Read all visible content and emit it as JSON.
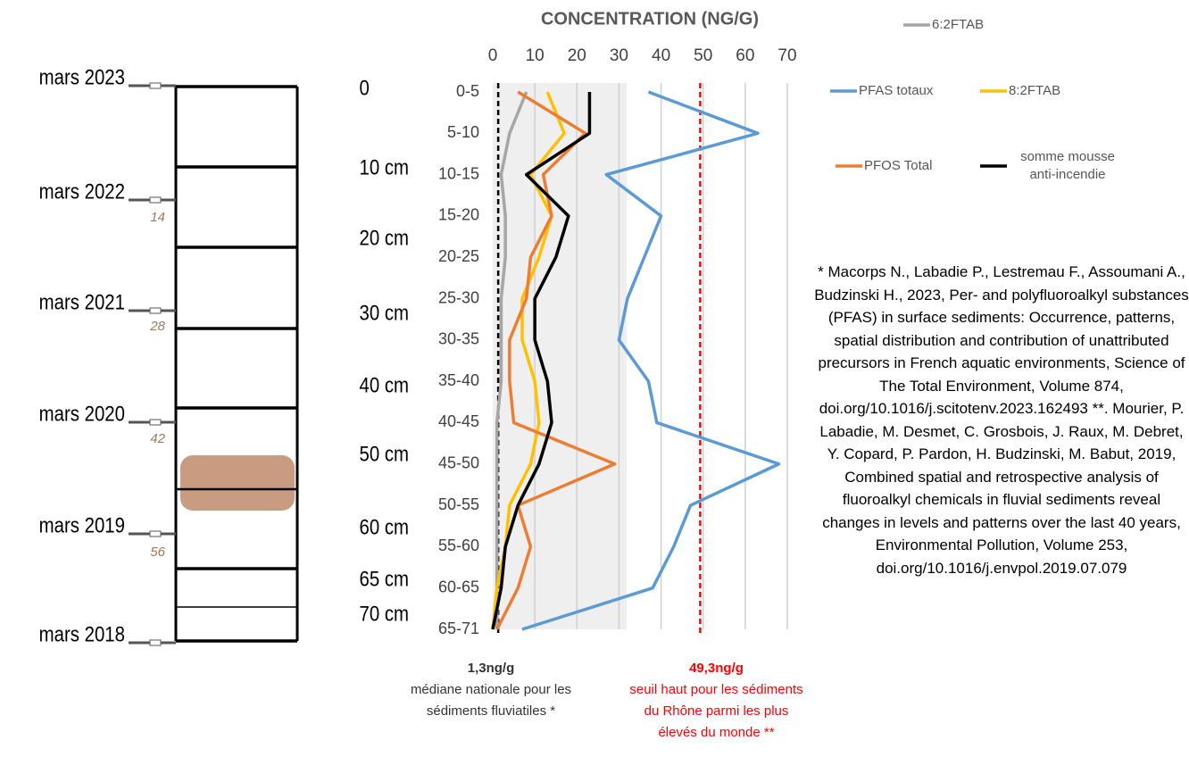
{
  "chart_data": {
    "type": "line",
    "title": "CONCENTRATION (NG/G)",
    "categories": [
      "0-5",
      "5-10",
      "10-15",
      "15-20",
      "20-25",
      "25-30",
      "30-35",
      "35-40",
      "40-45",
      "45-50",
      "50-55",
      "55-60",
      "60-65",
      "65-71"
    ],
    "xlim": [
      0,
      70
    ],
    "xticks": [
      0,
      10,
      20,
      30,
      40,
      50,
      60,
      70
    ],
    "grid": true,
    "series": [
      {
        "name": "6:2FTAB",
        "color": "#a6a6a6",
        "values": [
          8,
          4,
          2,
          3,
          3,
          2,
          2,
          2,
          1,
          1,
          1,
          1,
          1,
          1
        ]
      },
      {
        "name": "PFAS totaux",
        "color": "#5b9bd5",
        "values": [
          37,
          63,
          27,
          40,
          36,
          32,
          30,
          37,
          39,
          68,
          47,
          43,
          38,
          7
        ]
      },
      {
        "name": "8:2FTAB",
        "color": "#ffc000",
        "values": [
          13,
          17,
          9,
          14,
          11,
          7,
          7,
          10,
          11,
          9,
          4,
          3,
          1,
          0
        ]
      },
      {
        "name": "PFOS Total",
        "color": "#ed7d31",
        "values": [
          6,
          22,
          12,
          14,
          9,
          8,
          4,
          4,
          5,
          29,
          6,
          9,
          6,
          1
        ]
      },
      {
        "name": "somme mousse anti-incendie",
        "color": "#000000",
        "values": [
          23,
          23,
          8,
          18,
          15,
          10,
          10,
          13,
          14,
          11,
          6,
          3,
          2,
          0
        ]
      }
    ],
    "reference_lines": [
      {
        "value": 1.3,
        "label": "1,3ng/g",
        "note": "médiane nationale pour les sédiments fluviatiles *",
        "color": "#000000"
      },
      {
        "value": 49.3,
        "label": "49,3ng/g",
        "note": "seuil haut pour les sédiments du Rhône parmi les plus élevés du monde **",
        "color": "#ff0000"
      }
    ]
  },
  "core": {
    "dates": [
      "mars 2023",
      "mars 2022",
      "mars 2021",
      "mars 2020",
      "mars 2019",
      "mars 2018"
    ],
    "depths": [
      "0",
      "10 cm",
      "20 cm",
      "30 cm",
      "40 cm",
      "50 cm",
      "60 cm",
      "65 cm",
      "70 cm"
    ],
    "ages": [
      "14",
      "28",
      "42",
      "56"
    ]
  },
  "references": "* Macorps N., Labadie P., Lestremau F., Assoumani A., Budzinski H., 2023, Per- and polyfluoroalkyl substances (PFAS) in surface sediments: Occurrence, patterns, spatial distribution and contribution of unattributed precursors in French aquatic environments, Science of The Total Environment, Volume 874, doi.org/10.1016/j.scitotenv.2023.162493 **. Mourier, P. Labadie, M. Desmet, C. Grosbois, J. Raux, M. Debret, Y. Copard, P. Pardon, H. Budzinski, M. Babut, 2019, Combined spatial and retrospective analysis of fluoroalkyl chemicals in fluvial sediments reveal changes in levels and patterns over the last 40 years, Environmental Pollution, Volume 253, doi.org/10.1016/j.envpol.2019.07.079"
}
